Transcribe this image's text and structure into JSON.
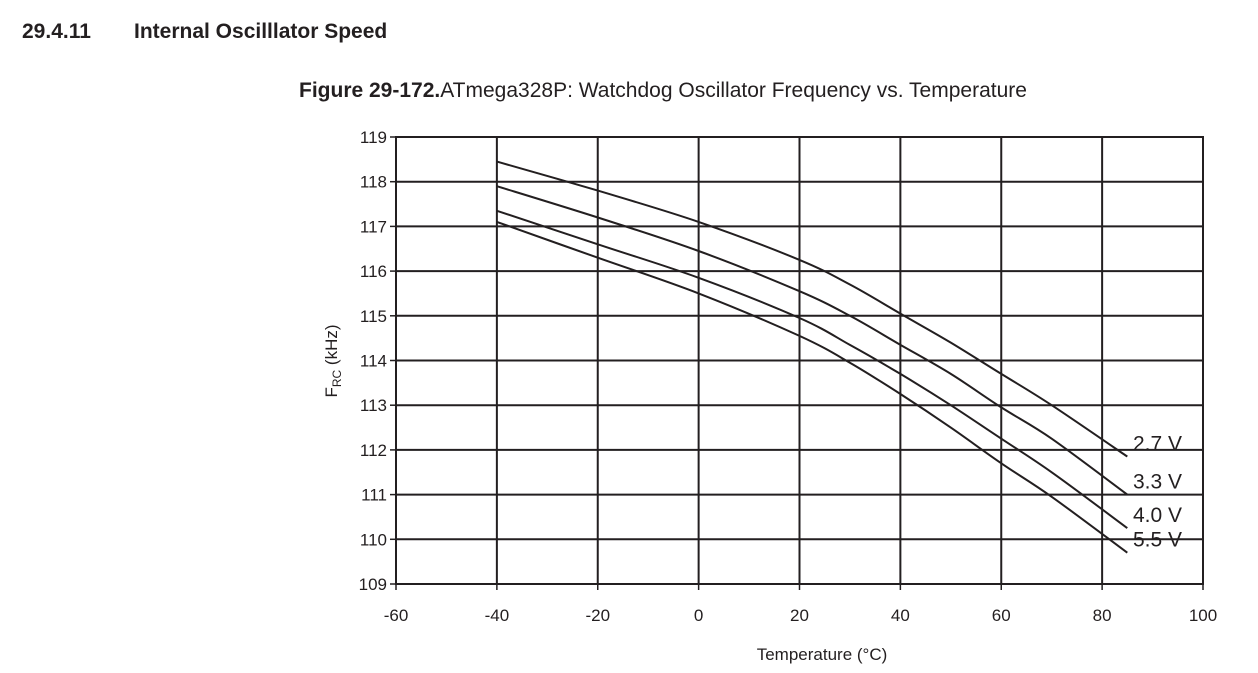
{
  "section": {
    "number": "29.4.11",
    "title": "Internal Oscilllator Speed"
  },
  "figure": {
    "label": "Figure 29-172.",
    "title": "ATmega328P: Watchdog Oscillator Frequency vs. Temperature"
  },
  "chart_data": {
    "type": "line",
    "title": "ATmega328P: Watchdog Oscillator Frequency vs. Temperature",
    "xlabel": "Temperature (°C)",
    "ylabel_main": "F",
    "ylabel_sub": "RC",
    "ylabel_unit": " (kHz)",
    "xlim": [
      -60,
      100
    ],
    "ylim": [
      109,
      119
    ],
    "xticks": [
      -60,
      -40,
      -20,
      0,
      20,
      40,
      60,
      80,
      100
    ],
    "yticks": [
      109,
      110,
      111,
      112,
      113,
      114,
      115,
      116,
      117,
      118,
      119
    ],
    "grid": true,
    "line_color": "#231f20",
    "x": [
      -40,
      -20,
      0,
      20,
      30,
      40,
      50,
      60,
      70,
      85
    ],
    "series": [
      {
        "name": "2.7 V",
        "values": [
          118.45,
          117.8,
          117.1,
          116.25,
          115.7,
          115.05,
          114.4,
          113.7,
          113.0,
          111.85
        ]
      },
      {
        "name": "3.3 V",
        "values": [
          117.9,
          117.2,
          116.45,
          115.55,
          115.0,
          114.35,
          113.7,
          112.95,
          112.25,
          111.0
        ]
      },
      {
        "name": "4.0 V",
        "values": [
          117.35,
          116.6,
          115.85,
          114.95,
          114.35,
          113.7,
          113.0,
          112.25,
          111.5,
          110.25
        ]
      },
      {
        "name": "5.5 V",
        "values": [
          117.1,
          116.3,
          115.5,
          114.55,
          113.95,
          113.25,
          112.5,
          111.7,
          110.95,
          109.7
        ]
      }
    ]
  }
}
